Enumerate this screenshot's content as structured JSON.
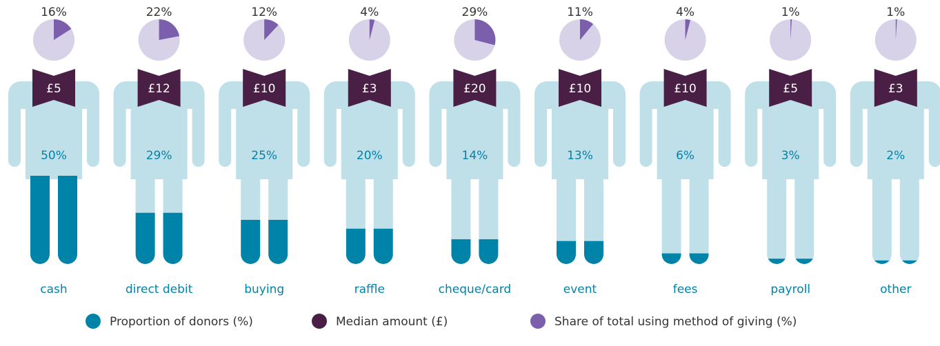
{
  "chart_data": {
    "type": "pictogram",
    "categories": [
      "cash",
      "direct debit",
      "buying",
      "raffle",
      "cheque/card",
      "event",
      "fees",
      "payroll",
      "other"
    ],
    "series": [
      {
        "name": "Proportion of donors (%)",
        "color": "#0083a9",
        "values": [
          50,
          29,
          25,
          20,
          14,
          13,
          6,
          3,
          2
        ],
        "value_labels": [
          "50%",
          "29%",
          "25%",
          "20%",
          "14%",
          "13%",
          "6%",
          "3%",
          "2%"
        ]
      },
      {
        "name": "Median amount (£)",
        "color": "#4a1f45",
        "values": [
          5,
          12,
          10,
          3,
          20,
          10,
          10,
          5,
          3
        ],
        "value_labels": [
          "£5",
          "£12",
          "£10",
          "£3",
          "£20",
          "£10",
          "£10",
          "£5",
          "£3"
        ]
      },
      {
        "name": "Share of total using method of giving (%)",
        "color": "#7b5fac",
        "values": [
          16,
          22,
          12,
          4,
          29,
          11,
          4,
          1,
          1
        ],
        "value_labels": [
          "16%",
          "22%",
          "12%",
          "4%",
          "29%",
          "11%",
          "4%",
          "1%",
          "1%"
        ]
      }
    ]
  }
}
